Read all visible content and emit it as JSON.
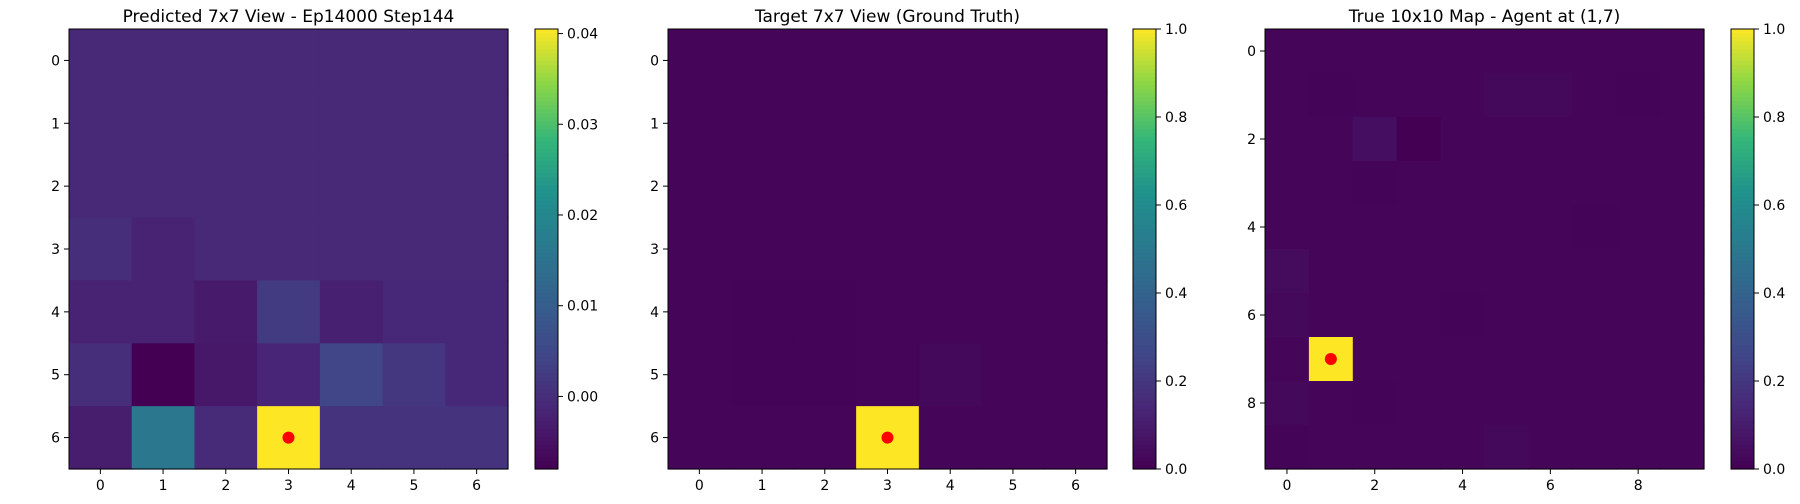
{
  "chart_data": [
    {
      "type": "heatmap",
      "title": "Predicted 7x7 View - Ep14000 Step144",
      "xlabel": "",
      "ylabel": "",
      "grid": false,
      "colormap": "viridis",
      "vmin": -0.008,
      "vmax": 0.0405,
      "x_ticks": [
        0,
        1,
        2,
        3,
        4,
        5,
        6
      ],
      "y_ticks": [
        0,
        1,
        2,
        3,
        4,
        5,
        6
      ],
      "colorbar_ticks": [
        0.04,
        0.03,
        0.02,
        0.01,
        0.0
      ],
      "colorbar_tick_labels": [
        "0.04",
        "0.03",
        "0.02",
        "0.01",
        "0.00"
      ],
      "values": [
        [
          -0.0008,
          -0.0008,
          -0.0008,
          -0.0008,
          -0.0008,
          -0.0008,
          -0.0008
        ],
        [
          -0.0008,
          -0.0008,
          -0.0008,
          -0.0008,
          -0.0008,
          -0.0008,
          -0.0008
        ],
        [
          -0.0008,
          -0.0008,
          -0.0008,
          -0.0008,
          -0.0008,
          -0.0008,
          -0.0008
        ],
        [
          0.0002,
          -0.0018,
          -0.0008,
          -0.0008,
          -0.0008,
          -0.0008,
          -0.0008
        ],
        [
          -0.0018,
          -0.0018,
          -0.0035,
          0.0025,
          -0.0025,
          -0.0012,
          -0.0012
        ],
        [
          0.0002,
          -0.008,
          -0.004,
          -0.0015,
          0.0045,
          0.0018,
          -0.0012
        ],
        [
          -0.003,
          0.016,
          -0.0005,
          0.0405,
          0.001,
          0.001,
          0.001
        ]
      ],
      "agent_marker": {
        "x": 3,
        "y": 6,
        "color": "#ff0000"
      }
    },
    {
      "type": "heatmap",
      "title": "Target 7x7 View (Ground Truth)",
      "xlabel": "",
      "ylabel": "",
      "grid": false,
      "colormap": "viridis",
      "vmin": 0.0,
      "vmax": 1.0,
      "x_ticks": [
        0,
        1,
        2,
        3,
        4,
        5,
        6
      ],
      "y_ticks": [
        0,
        1,
        2,
        3,
        4,
        5,
        6
      ],
      "colorbar_ticks": [
        1.0,
        0.8,
        0.6,
        0.4,
        0.2,
        0.0
      ],
      "colorbar_tick_labels": [
        "1.0",
        "0.8",
        "0.6",
        "0.4",
        "0.2",
        "0.0"
      ],
      "values": [
        [
          0.02,
          0.02,
          0.02,
          0.02,
          0.02,
          0.02,
          0.02
        ],
        [
          0.02,
          0.02,
          0.02,
          0.02,
          0.02,
          0.02,
          0.02
        ],
        [
          0.02,
          0.02,
          0.02,
          0.02,
          0.02,
          0.02,
          0.02
        ],
        [
          0.02,
          0.02,
          0.02,
          0.02,
          0.02,
          0.02,
          0.02
        ],
        [
          0.02,
          0.01,
          0.01,
          0.02,
          0.02,
          0.02,
          0.02
        ],
        [
          0.02,
          0.01,
          0.01,
          0.02,
          0.03,
          0.02,
          0.02
        ],
        [
          0.02,
          0.02,
          0.02,
          1.0,
          0.02,
          0.02,
          0.02
        ]
      ],
      "agent_marker": {
        "x": 3,
        "y": 6,
        "color": "#ff0000"
      }
    },
    {
      "type": "heatmap",
      "title": "True 10x10 Map - Agent at (1,7)",
      "xlabel": "",
      "ylabel": "",
      "grid": false,
      "colormap": "viridis",
      "vmin": 0.0,
      "vmax": 1.0,
      "x_ticks": [
        0,
        2,
        4,
        6,
        8
      ],
      "y_ticks": [
        0,
        2,
        4,
        6,
        8
      ],
      "colorbar_ticks": [
        1.0,
        0.8,
        0.6,
        0.4,
        0.2,
        0.0
      ],
      "colorbar_tick_labels": [
        "1.0",
        "0.8",
        "0.6",
        "0.4",
        "0.2",
        "0.0"
      ],
      "values": [
        [
          0.02,
          0.02,
          0.02,
          0.02,
          0.02,
          0.02,
          0.02,
          0.02,
          0.02,
          0.02
        ],
        [
          0.02,
          0.01,
          0.02,
          0.02,
          0.02,
          0.03,
          0.03,
          0.02,
          0.01,
          0.02
        ],
        [
          0.02,
          0.02,
          0.05,
          0.0,
          0.02,
          0.02,
          0.02,
          0.02,
          0.02,
          0.02
        ],
        [
          0.02,
          0.02,
          0.01,
          0.02,
          0.02,
          0.02,
          0.02,
          0.02,
          0.02,
          0.02
        ],
        [
          0.02,
          0.02,
          0.02,
          0.02,
          0.02,
          0.02,
          0.02,
          0.01,
          0.02,
          0.02
        ],
        [
          0.04,
          0.02,
          0.02,
          0.02,
          0.02,
          0.02,
          0.02,
          0.02,
          0.02,
          0.02
        ],
        [
          0.03,
          0.02,
          0.02,
          0.02,
          0.01,
          0.02,
          0.02,
          0.02,
          0.02,
          0.02
        ],
        [
          0.02,
          1.0,
          0.02,
          0.02,
          0.02,
          0.02,
          0.02,
          0.02,
          0.02,
          0.02
        ],
        [
          0.03,
          0.02,
          0.01,
          0.02,
          0.02,
          0.02,
          0.02,
          0.02,
          0.02,
          0.02
        ],
        [
          0.01,
          0.02,
          0.02,
          0.02,
          0.02,
          0.03,
          0.02,
          0.02,
          0.02,
          0.02
        ]
      ],
      "agent_marker": {
        "x": 1,
        "y": 7,
        "color": "#ff0000"
      }
    }
  ]
}
